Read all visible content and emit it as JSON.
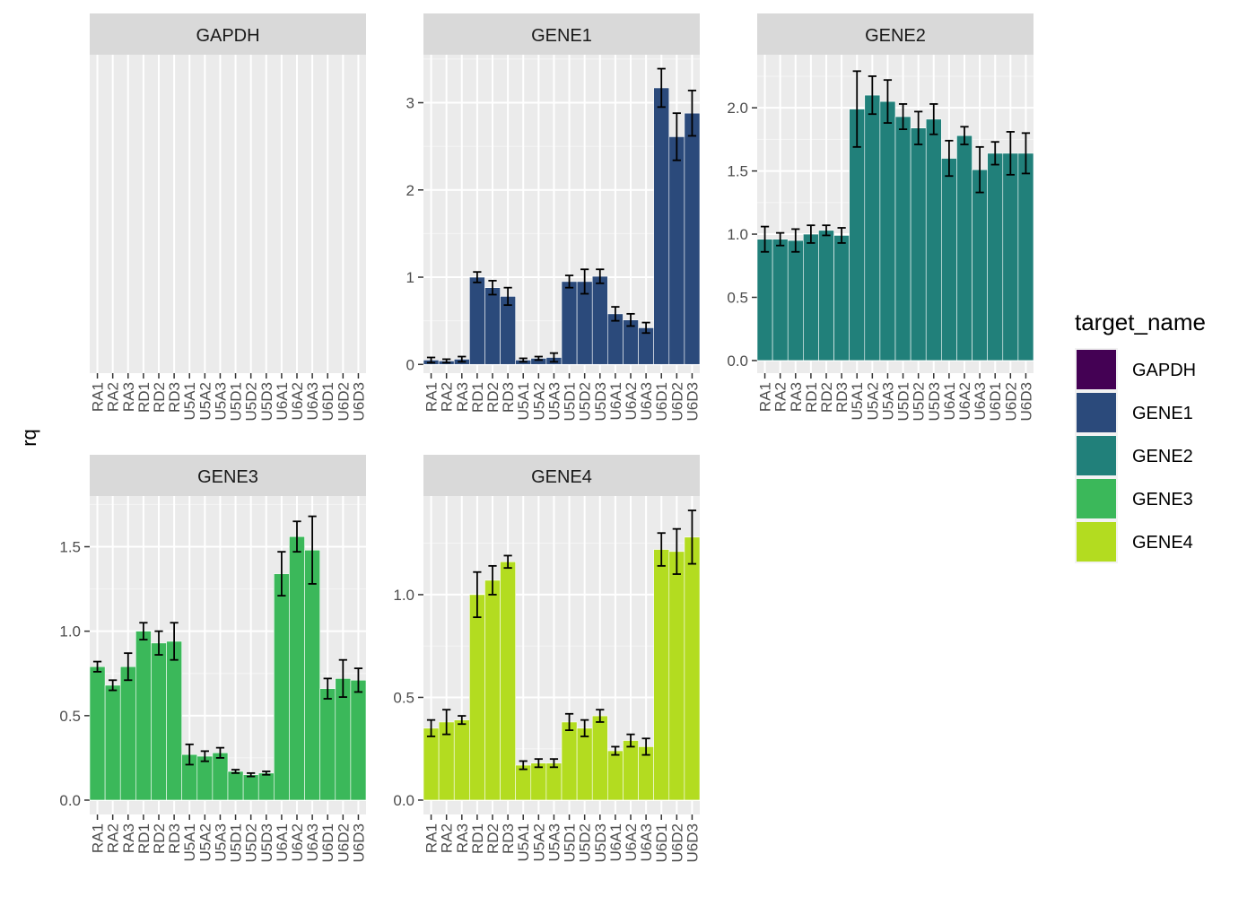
{
  "chart_data": {
    "type": "bar",
    "ylabel": "rq",
    "xlabel": "",
    "legend": {
      "title": "target_name",
      "placement": "right",
      "entries": [
        {
          "name": "GAPDH",
          "color": "#440154"
        },
        {
          "name": "GENE1",
          "color": "#2B4A7B"
        },
        {
          "name": "GENE2",
          "color": "#21807A"
        },
        {
          "name": "GENE3",
          "color": "#3BB85A"
        },
        {
          "name": "GENE4",
          "color": "#B3DC20"
        }
      ]
    },
    "categories": [
      "RA1",
      "RA2",
      "RA3",
      "RD1",
      "RD2",
      "RD3",
      "U5A1",
      "U5A2",
      "U5A3",
      "U5D1",
      "U5D2",
      "U5D3",
      "U6A1",
      "U6A2",
      "U6A3",
      "U6D1",
      "U6D2",
      "U6D3"
    ],
    "grid": true,
    "panels": [
      {
        "name": "GAPDH",
        "ylim": null,
        "yticks": [],
        "values": [],
        "errors": []
      },
      {
        "name": "GENE1",
        "ylim": [
          -0.1,
          3.55
        ],
        "yticks": [
          0,
          1,
          2,
          3
        ],
        "ytick_labels": [
          "0",
          "1",
          "2",
          "3"
        ],
        "values": [
          0.05,
          0.04,
          0.06,
          1.0,
          0.88,
          0.78,
          0.05,
          0.07,
          0.08,
          0.95,
          0.95,
          1.01,
          0.58,
          0.51,
          0.42,
          3.17,
          2.61,
          2.88
        ],
        "errors": [
          0.03,
          0.02,
          0.03,
          0.06,
          0.08,
          0.1,
          0.02,
          0.02,
          0.05,
          0.07,
          0.14,
          0.08,
          0.08,
          0.07,
          0.06,
          0.22,
          0.27,
          0.26
        ]
      },
      {
        "name": "GENE2",
        "ylim": [
          -0.1,
          2.42
        ],
        "yticks": [
          0.0,
          0.5,
          1.0,
          1.5,
          2.0
        ],
        "ytick_labels": [
          "0.0",
          "0.5",
          "1.0",
          "1.5",
          "2.0"
        ],
        "values": [
          0.96,
          0.96,
          0.95,
          1.0,
          1.03,
          0.99,
          1.99,
          2.1,
          2.05,
          1.93,
          1.84,
          1.91,
          1.6,
          1.78,
          1.51,
          1.64,
          1.64,
          1.64
        ],
        "errors": [
          0.1,
          0.05,
          0.09,
          0.07,
          0.04,
          0.06,
          0.3,
          0.15,
          0.17,
          0.1,
          0.13,
          0.12,
          0.14,
          0.07,
          0.18,
          0.09,
          0.17,
          0.16
        ]
      },
      {
        "name": "GENE3",
        "ylim": [
          -0.085,
          1.8
        ],
        "yticks": [
          0.0,
          0.5,
          1.0,
          1.5
        ],
        "ytick_labels": [
          "0.0",
          "0.5",
          "1.0",
          "1.5"
        ],
        "values": [
          0.79,
          0.68,
          0.79,
          1.0,
          0.93,
          0.94,
          0.27,
          0.26,
          0.28,
          0.17,
          0.15,
          0.16,
          1.34,
          1.56,
          1.48,
          0.66,
          0.72,
          0.71
        ],
        "errors": [
          0.03,
          0.03,
          0.08,
          0.05,
          0.07,
          0.11,
          0.06,
          0.03,
          0.03,
          0.01,
          0.01,
          0.01,
          0.13,
          0.09,
          0.2,
          0.06,
          0.11,
          0.07
        ]
      },
      {
        "name": "GENE4",
        "ylim": [
          -0.07,
          1.48
        ],
        "yticks": [
          0.0,
          0.5,
          1.0
        ],
        "ytick_labels": [
          "0.0",
          "0.5",
          "1.0"
        ],
        "values": [
          0.35,
          0.38,
          0.39,
          1.0,
          1.07,
          1.16,
          0.17,
          0.18,
          0.18,
          0.38,
          0.35,
          0.41,
          0.24,
          0.29,
          0.26,
          1.22,
          1.21,
          1.28
        ],
        "errors": [
          0.04,
          0.06,
          0.02,
          0.11,
          0.07,
          0.03,
          0.02,
          0.02,
          0.02,
          0.04,
          0.04,
          0.03,
          0.02,
          0.03,
          0.04,
          0.08,
          0.11,
          0.13
        ]
      }
    ]
  }
}
